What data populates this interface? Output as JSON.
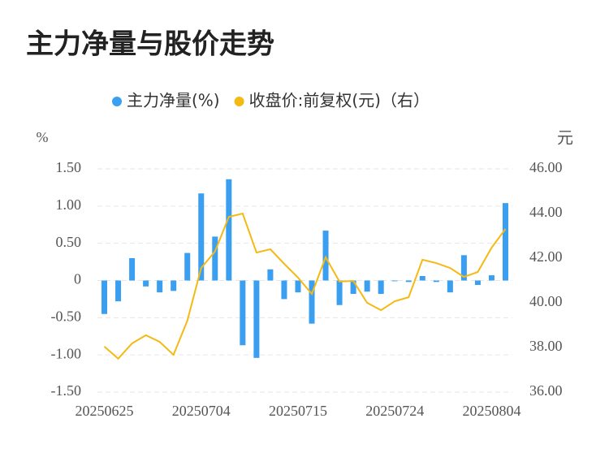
{
  "chart_data": {
    "type": "bar-line",
    "title": "主力净量与股价走势",
    "y_label": "%",
    "y2_label": "元",
    "categories": [
      "20250625",
      null,
      null,
      null,
      null,
      null,
      null,
      "20250704",
      null,
      null,
      null,
      null,
      null,
      null,
      "20250715",
      null,
      null,
      null,
      null,
      null,
      null,
      "20250724",
      null,
      null,
      null,
      null,
      null,
      null,
      "20250804",
      null
    ],
    "series": [
      {
        "name": "主力净量(%)",
        "type": "bar",
        "color": "#3a9ff0",
        "axis": "y",
        "values": [
          -0.45,
          -0.28,
          0.3,
          -0.08,
          -0.16,
          -0.14,
          0.37,
          1.17,
          0.59,
          1.36,
          -0.87,
          -1.04,
          0.15,
          -0.25,
          -0.16,
          -0.58,
          0.67,
          -0.33,
          -0.18,
          -0.15,
          -0.18,
          -0.01,
          -0.02,
          0.06,
          -0.02,
          -0.16,
          0.34,
          -0.06,
          0.07,
          1.04
        ]
      },
      {
        "name": "收盘价:前复权(元)（右）",
        "type": "line",
        "color": "#f5b914",
        "axis": "y2",
        "values": [
          38.04,
          37.5,
          38.18,
          38.55,
          38.25,
          37.67,
          39.2,
          41.56,
          42.3,
          43.85,
          44.0,
          42.25,
          42.4,
          41.75,
          41.13,
          40.4,
          42.04,
          40.95,
          40.98,
          40.0,
          39.67,
          40.07,
          40.25,
          41.93,
          41.78,
          41.56,
          41.16,
          41.38,
          42.47,
          43.31
        ]
      }
    ],
    "ylim": [
      -1.5,
      1.5
    ],
    "yticks": [
      {
        "value": -1.5,
        "label": "-1.50"
      },
      {
        "value": -1,
        "label": "-1.00"
      },
      {
        "value": -0.5,
        "label": "-0.50"
      },
      0,
      {
        "value": 0.5,
        "label": "0.50"
      },
      {
        "value": 1,
        "label": "1.00"
      },
      {
        "value": 1.5,
        "label": "1.50"
      }
    ],
    "y2lim": [
      36,
      46
    ],
    "y2ticks": [
      {
        "value": 36,
        "label": "36.00"
      },
      {
        "value": 38,
        "label": "38.00"
      },
      {
        "value": 40,
        "label": "40.00"
      },
      {
        "value": 42,
        "label": "42.00"
      },
      {
        "value": 44,
        "label": "44.00"
      },
      {
        "value": 46,
        "label": "46.00"
      }
    ],
    "grid": true,
    "legend": "top"
  }
}
